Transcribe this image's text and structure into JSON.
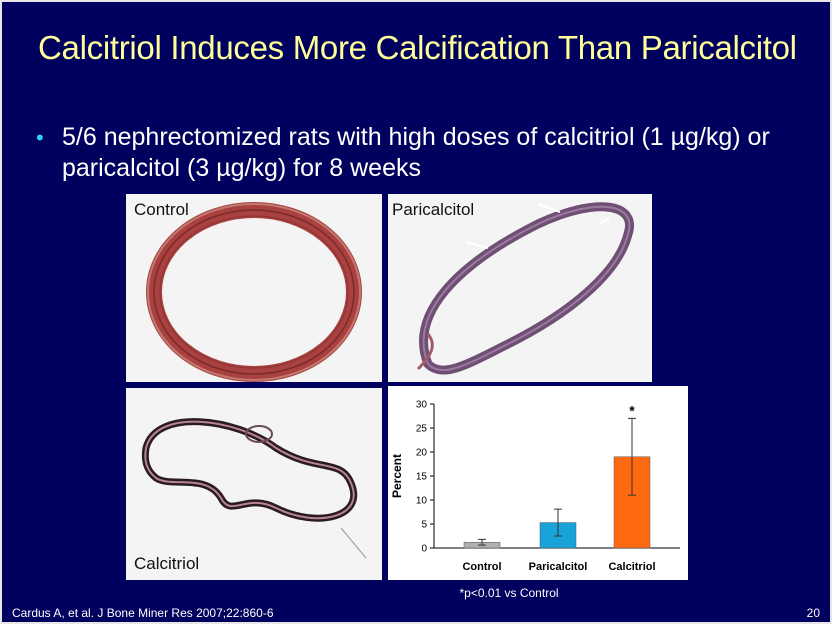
{
  "slide": {
    "title": "Calcitriol Induces More Calcification Than Paricalcitol",
    "bullet": "5/6 nephrectomized rats with high doses of calcitriol (1 µg/kg) or paricalcitol (3 µg/kg) for 8 weeks",
    "citation": "Cardus A, et al. J Bone Miner Res 2007;22:860-6",
    "page_number": "20",
    "footnote": "*p<0.01 vs Control"
  },
  "panels": {
    "control_label": "Control",
    "paricalcitol_label": "Paricalcitol",
    "calcitriol_label": "Calcitriol"
  },
  "colors": {
    "background": "#00005e",
    "title": "#ffff99",
    "bullet_dot": "#33ccff",
    "control_bar": "#b0b0b0",
    "paricalcitol_bar": "#1aa3d9",
    "calcitriol_bar": "#ff6a10"
  },
  "chart_data": {
    "type": "bar",
    "categories": [
      "Control",
      "Paricalcitol",
      "Calcitriol"
    ],
    "values": [
      1.2,
      5.3,
      19
    ],
    "error": [
      0.6,
      2.8,
      8
    ],
    "significance": [
      "",
      "",
      "*"
    ],
    "ylabel": "Percent",
    "xlabel": "",
    "ylim": [
      0,
      30
    ],
    "yticks": [
      0,
      5,
      10,
      15,
      20,
      25,
      30
    ],
    "grid": false,
    "legend": "none"
  }
}
